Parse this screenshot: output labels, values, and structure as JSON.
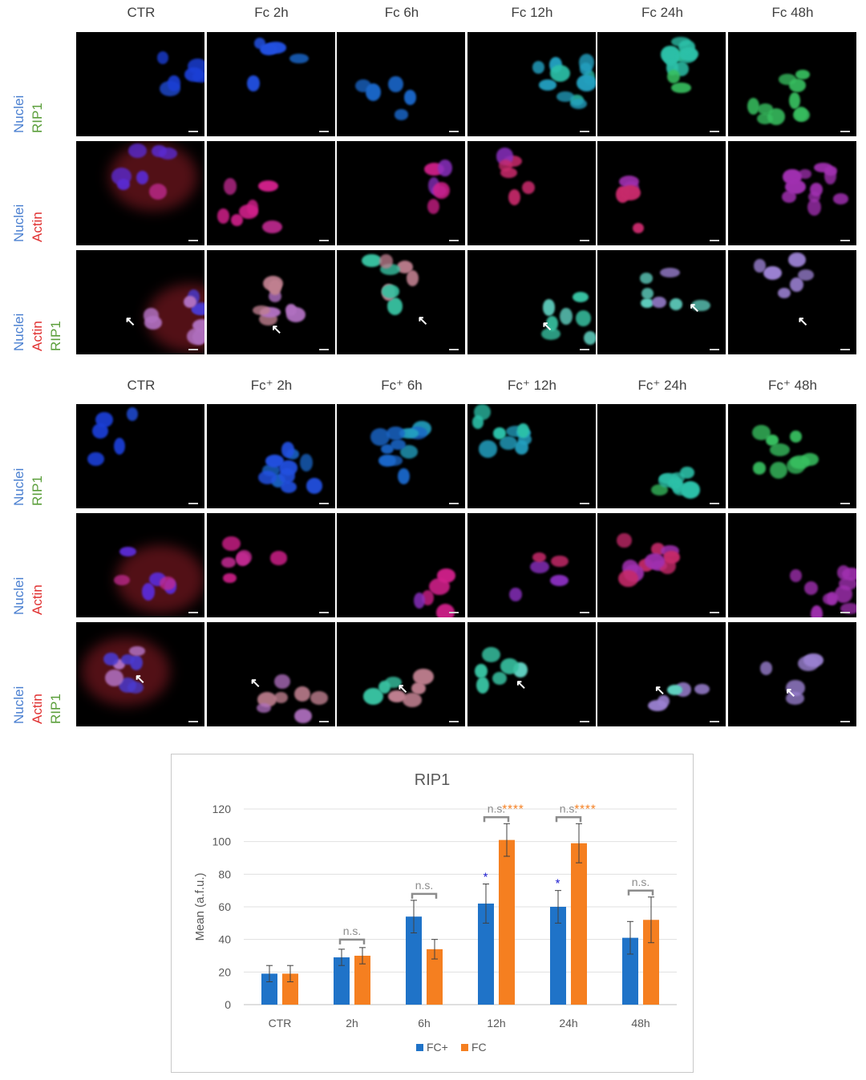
{
  "top_panel": {
    "columns": [
      "CTR",
      "Fc 2h",
      "Fc 6h",
      "Fc 12h",
      "Fc 24h",
      "Fc 48h"
    ],
    "rows": [
      {
        "labels": [
          {
            "text": "Nuclei",
            "color": "#4a7fd0"
          },
          {
            "text": "RIP1",
            "color": "#5a9e3a"
          }
        ],
        "channel": "rip1"
      },
      {
        "labels": [
          {
            "text": "Nuclei",
            "color": "#4a7fd0"
          },
          {
            "text": "Actin",
            "color": "#e03131"
          }
        ],
        "channel": "actin"
      },
      {
        "labels": [
          {
            "text": "Nuclei",
            "color": "#4a7fd0"
          },
          {
            "text": "Actin",
            "color": "#e03131"
          },
          {
            "text": "RIP1",
            "color": "#5a9e3a"
          }
        ],
        "channel": "merge"
      }
    ]
  },
  "bottom_panel": {
    "columns": [
      "CTR",
      "Fc⁺ 2h",
      "Fc⁺ 6h",
      "Fc⁺ 12h",
      "Fc⁺ 24h",
      "Fc⁺ 48h"
    ],
    "rows": [
      {
        "labels": [
          {
            "text": "Nuclei",
            "color": "#4a7fd0"
          },
          {
            "text": "RIP1",
            "color": "#5a9e3a"
          }
        ],
        "channel": "rip1"
      },
      {
        "labels": [
          {
            "text": "Nuclei",
            "color": "#4a7fd0"
          },
          {
            "text": "Actin",
            "color": "#e03131"
          }
        ],
        "channel": "actin"
      },
      {
        "labels": [
          {
            "text": "Nuclei",
            "color": "#4a7fd0"
          },
          {
            "text": "Actin",
            "color": "#e03131"
          },
          {
            "text": "RIP1",
            "color": "#5a9e3a"
          }
        ],
        "channel": "merge"
      }
    ]
  },
  "chart_data": {
    "type": "bar",
    "title": "RIP1",
    "ylabel": "Mean (a.f.u.)",
    "xlabel": "",
    "ylim": [
      0,
      120
    ],
    "yticks": [
      0,
      20,
      40,
      60,
      80,
      100,
      120
    ],
    "grid": true,
    "legend_position": "bottom",
    "categories": [
      "CTR",
      "2h",
      "6h",
      "12h",
      "24h",
      "48h"
    ],
    "series": [
      {
        "name": "FC+",
        "color": "#1f73c8",
        "values": [
          19,
          29,
          54,
          62,
          60,
          41
        ],
        "errors": [
          5,
          5,
          10,
          12,
          10,
          10
        ]
      },
      {
        "name": "FC",
        "color": "#f57f20",
        "values": [
          19,
          30,
          34,
          101,
          99,
          52
        ],
        "errors": [
          5,
          5,
          6,
          10,
          12,
          14
        ]
      }
    ],
    "annotations": {
      "ns_brackets": [
        {
          "category": "2h",
          "text": "n.s."
        },
        {
          "category": "6h",
          "text": "n.s."
        },
        {
          "category": "12h",
          "text": "n.s."
        },
        {
          "category": "24h",
          "text": "n.s."
        },
        {
          "category": "48h",
          "text": "n.s."
        }
      ],
      "stars": [
        {
          "category": "12h",
          "series": "FC+",
          "text": "*",
          "color": "#1a1ad0"
        },
        {
          "category": "24h",
          "series": "FC+",
          "text": "*",
          "color": "#1a1ad0"
        },
        {
          "category": "12h",
          "series": "FC",
          "text": "****",
          "color": "#f57f20"
        },
        {
          "category": "24h",
          "series": "FC",
          "text": "****",
          "color": "#f57f20"
        }
      ]
    }
  }
}
